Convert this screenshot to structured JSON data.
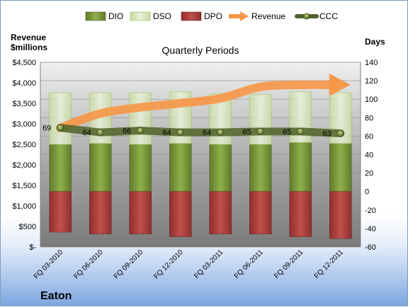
{
  "chart_data": {
    "type": "bar",
    "title": "Quarterly Periods",
    "company": "Eaton",
    "left_axis_label": [
      "Revenue",
      "$millions"
    ],
    "right_axis_label": "Days",
    "categories": [
      "FQ 03-2010",
      "FQ 06-2010",
      "FQ 09-2010",
      "FQ 12-2010",
      "FQ 03-2011",
      "FQ 06-2011",
      "FQ 09-2011",
      "FQ 12-2011"
    ],
    "left_ylim": [
      0,
      4500
    ],
    "left_ticks": [
      0,
      500,
      1000,
      1500,
      2000,
      2500,
      3000,
      3500,
      4000,
      4500
    ],
    "left_tick_labels": [
      "$-",
      "$500",
      "$1,000",
      "$1,500",
      "$2,000",
      "$2,500",
      "$3,000",
      "$3,500",
      "$4,000",
      "$4,500"
    ],
    "right_ylim": [
      -60,
      140
    ],
    "right_ticks": [
      -60,
      -40,
      -20,
      0,
      20,
      40,
      60,
      80,
      100,
      120,
      140
    ],
    "legend_position": "top",
    "grid": true,
    "series": [
      {
        "name": "DIO",
        "kind": "bar-positive",
        "axis": "right",
        "color": "#77933c",
        "values": [
          51,
          52,
          51,
          52,
          51,
          51,
          53,
          52
        ]
      },
      {
        "name": "DSO",
        "kind": "bar-positive-stacked",
        "axis": "right",
        "color": "#d7e4bd",
        "values": [
          56,
          55,
          56,
          56,
          55,
          54,
          55,
          55
        ]
      },
      {
        "name": "DPO",
        "kind": "bar-negative",
        "axis": "right",
        "color": "#c0504d",
        "values": [
          -44,
          -46,
          -46,
          -49,
          -46,
          -46,
          -49,
          -51
        ]
      },
      {
        "name": "Revenue",
        "kind": "arrow-line",
        "axis": "left",
        "color": "#f79646",
        "values": [
          2900,
          3250,
          3400,
          3500,
          3620,
          3900,
          3950,
          3950
        ]
      },
      {
        "name": "CCC",
        "kind": "line-markers",
        "axis": "right",
        "color": "#4f6228",
        "values": [
          69,
          64,
          66,
          64,
          64,
          65,
          65,
          63
        ]
      }
    ]
  }
}
